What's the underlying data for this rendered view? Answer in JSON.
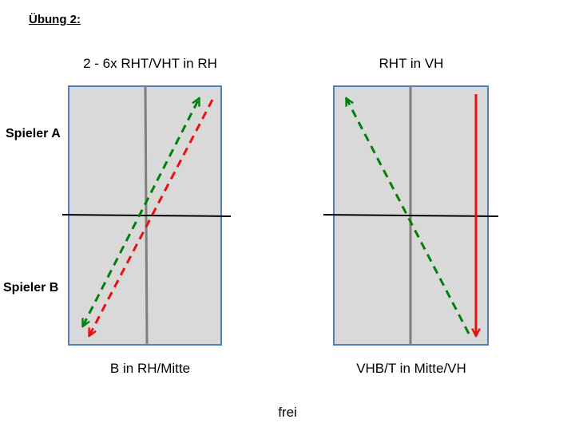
{
  "heading": "Übung 2:",
  "players": {
    "a": "Spieler A",
    "b": "Spieler B"
  },
  "diagrams": [
    {
      "title": "2 - 6x RHT/VHT in RH",
      "caption": "B in RH/Mitte"
    },
    {
      "title": "RHT in VH",
      "caption": "VHB/T in Mitte/VH"
    }
  ],
  "footer": "frei",
  "colors": {
    "court_fill": "#d9d9d9",
    "court_border": "#4f81bd",
    "center_line": "#7f7f7f",
    "net": "#000000",
    "green_arrow": "#00800a",
    "red_arrow": "#e81010"
  }
}
